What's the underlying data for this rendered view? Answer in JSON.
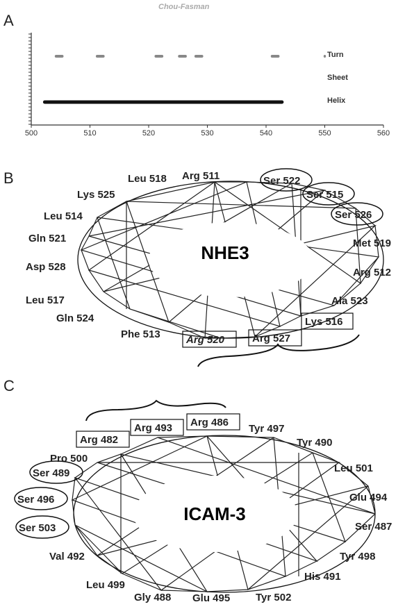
{
  "chart_data": {
    "type": "bar",
    "title": "Chou-Fasman",
    "x_ticks": [
      "500",
      "510",
      "520",
      "530",
      "540",
      "550",
      "560"
    ],
    "xlim": [
      500,
      560
    ],
    "rows": [
      "Turn",
      "Sheet",
      "Helix"
    ],
    "series": [
      {
        "name": "Turn",
        "segments": [
          [
            504,
            505.5
          ],
          [
            511,
            512.5
          ],
          [
            521,
            522.5
          ],
          [
            525,
            526.5
          ],
          [
            527.8,
            529.3
          ],
          [
            540.8,
            542.3
          ],
          [
            549.8,
            550.2
          ]
        ]
      },
      {
        "name": "Sheet",
        "segments": []
      },
      {
        "name": "Helix",
        "segments": [
          [
            502,
            543
          ]
        ]
      }
    ]
  },
  "panel_labels": {
    "a": "A",
    "b": "B",
    "c": "C"
  },
  "wheel_b": {
    "center": "NHE3",
    "residues": {
      "leu518": "Leu 518",
      "arg511": "Arg 511",
      "ser522": "Ser 522",
      "lys525": "Lys 525",
      "ser515": "Ser 515",
      "leu514": "Leu 514",
      "ser526": "Ser 526",
      "gln521": "Gln 521",
      "met519": "Met 519",
      "asp528": "Asp 528",
      "arg512": "Arg 512",
      "leu517": "Leu 517",
      "ala523": "Ala 523",
      "gln524": "Gln 524",
      "lys516": "Lys 516",
      "phe513": "Phe 513",
      "arg520": "Arg 520",
      "arg527": "Arg 527"
    }
  },
  "wheel_c": {
    "center": "ICAM-3",
    "residues": {
      "arg493": "Arg 493",
      "arg486": "Arg 486",
      "tyr497": "Tyr 497",
      "arg482": "Arg 482",
      "tyr490": "Tyr 490",
      "pro500": "Pro 500",
      "ser489": "Ser 489",
      "leu501": "Leu 501",
      "ser496": "Ser 496",
      "glu494": "Glu 494",
      "ser503": "Ser 503",
      "ser487": "Ser 487",
      "val492": "Val 492",
      "tyr498": "Tyr 498",
      "his491": "His 491",
      "leu499": "Leu 499",
      "gly488": "Gly 488",
      "glu495": "Glu 495",
      "tyr502": "Tyr 502"
    }
  }
}
